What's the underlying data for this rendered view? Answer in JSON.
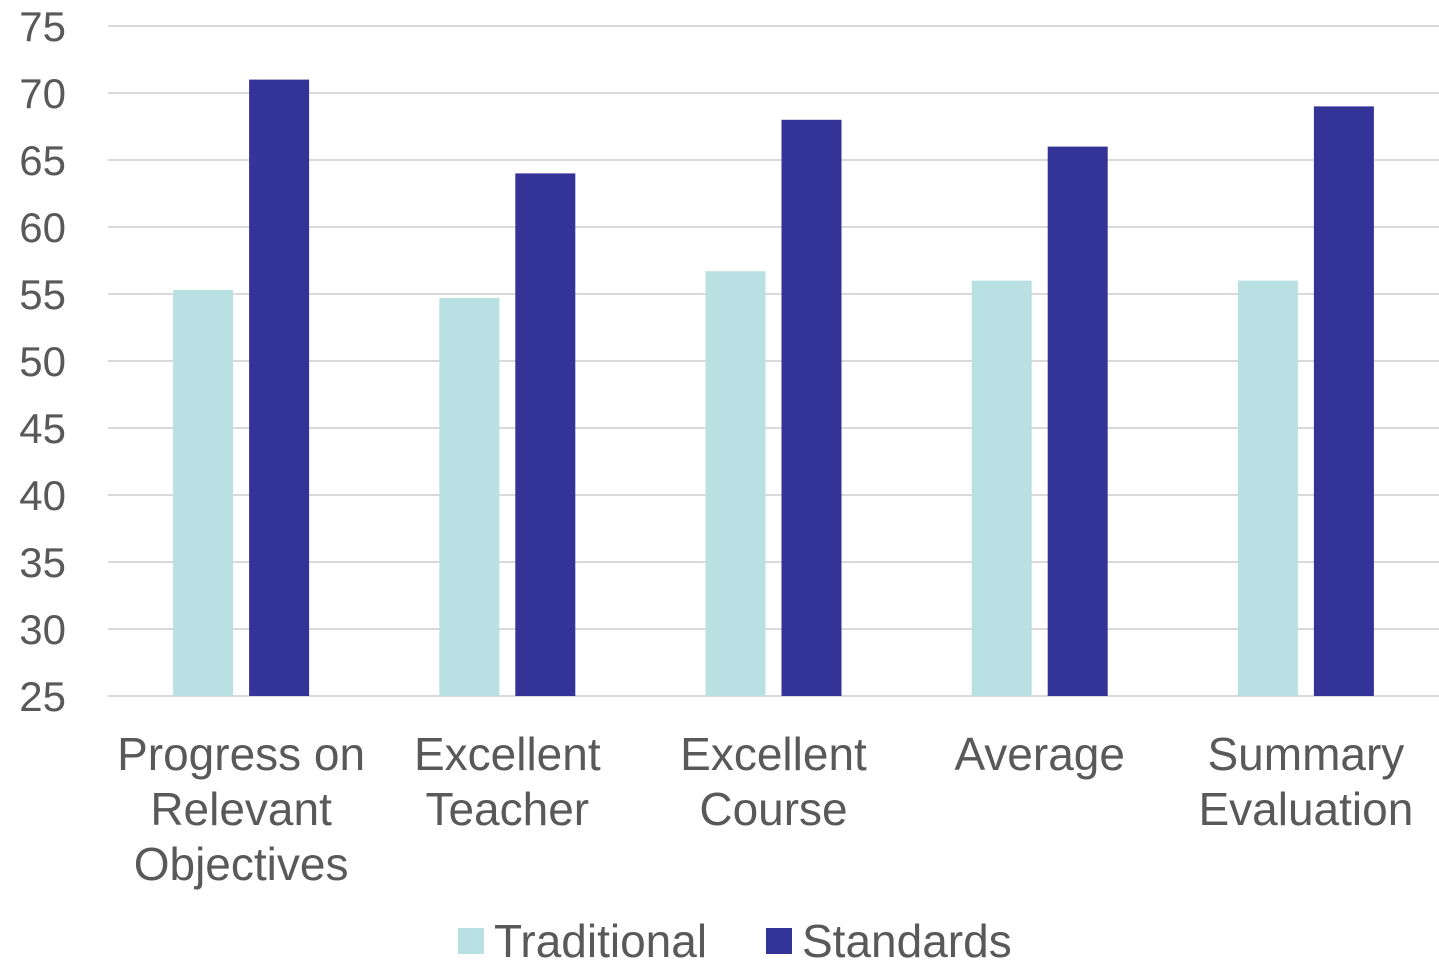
{
  "chart_data": {
    "type": "bar",
    "categories": [
      [
        "Progress on",
        "Relevant",
        "Objectives"
      ],
      [
        "Excellent",
        "Teacher"
      ],
      [
        "Excellent",
        "Course"
      ],
      [
        "Average"
      ],
      [
        "Summary",
        "Evaluation"
      ]
    ],
    "series": [
      {
        "name": "Traditional",
        "color": "#b9e0e3",
        "values": [
          55.3,
          54.7,
          56.7,
          56.0,
          56.0
        ]
      },
      {
        "name": "Standards",
        "color": "#343397",
        "values": [
          71.0,
          64.0,
          68.0,
          66.0,
          69.0
        ]
      }
    ],
    "ylim": [
      25,
      75
    ],
    "yticks": [
      25,
      30,
      35,
      40,
      45,
      50,
      55,
      60,
      65,
      70,
      75
    ],
    "grid": true,
    "legend": "bottom"
  }
}
